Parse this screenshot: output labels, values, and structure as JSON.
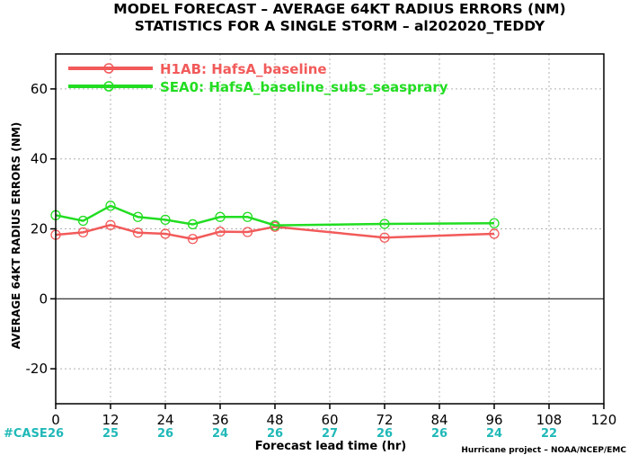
{
  "chart_data": {
    "type": "line",
    "title": "MODEL FORECAST – AVERAGE 64KT RADIUS ERRORS (NM)",
    "subtitle": "STATISTICS FOR A SINGLE STORM – al202020_TEDDY",
    "xlabel": "Forecast lead time (hr)",
    "ylabel": "AVERAGE 64KT RADIUS ERRORS (NM)",
    "xlim": [
      0,
      120
    ],
    "ylim": [
      -30,
      70
    ],
    "xticks": [
      0,
      12,
      24,
      36,
      48,
      60,
      72,
      84,
      96,
      108,
      120
    ],
    "yticks": [
      -20,
      0,
      20,
      40,
      60
    ],
    "grid": true,
    "legend_position": "top-left",
    "case_label": "#CASE",
    "case_counts": [
      {
        "x": 0,
        "n": "26"
      },
      {
        "x": 12,
        "n": "25"
      },
      {
        "x": 24,
        "n": "26"
      },
      {
        "x": 36,
        "n": "24"
      },
      {
        "x": 48,
        "n": "26"
      },
      {
        "x": 60,
        "n": "27"
      },
      {
        "x": 72,
        "n": "26"
      },
      {
        "x": 84,
        "n": "26"
      },
      {
        "x": 96,
        "n": "24"
      },
      {
        "x": 108,
        "n": "22"
      }
    ],
    "credit": "Hurricane project – NOAA/NCEP/EMC",
    "series": [
      {
        "name": "H1AB: HafsA_baseline",
        "color": "#f25a5a",
        "x": [
          0,
          6,
          12,
          18,
          24,
          30,
          36,
          42,
          48,
          72,
          96
        ],
        "y": [
          18.3,
          19.0,
          21.1,
          18.9,
          18.6,
          17.1,
          19.2,
          19.1,
          20.6,
          17.5,
          18.6
        ]
      },
      {
        "name": "SEA0: HafsA_baseline_subs_seasprary",
        "color": "#22dd22",
        "x": [
          0,
          6,
          12,
          18,
          24,
          30,
          36,
          42,
          48,
          72,
          96
        ],
        "y": [
          23.9,
          22.3,
          26.6,
          23.4,
          22.6,
          21.3,
          23.4,
          23.4,
          21.0,
          21.4,
          21.6
        ]
      }
    ]
  }
}
